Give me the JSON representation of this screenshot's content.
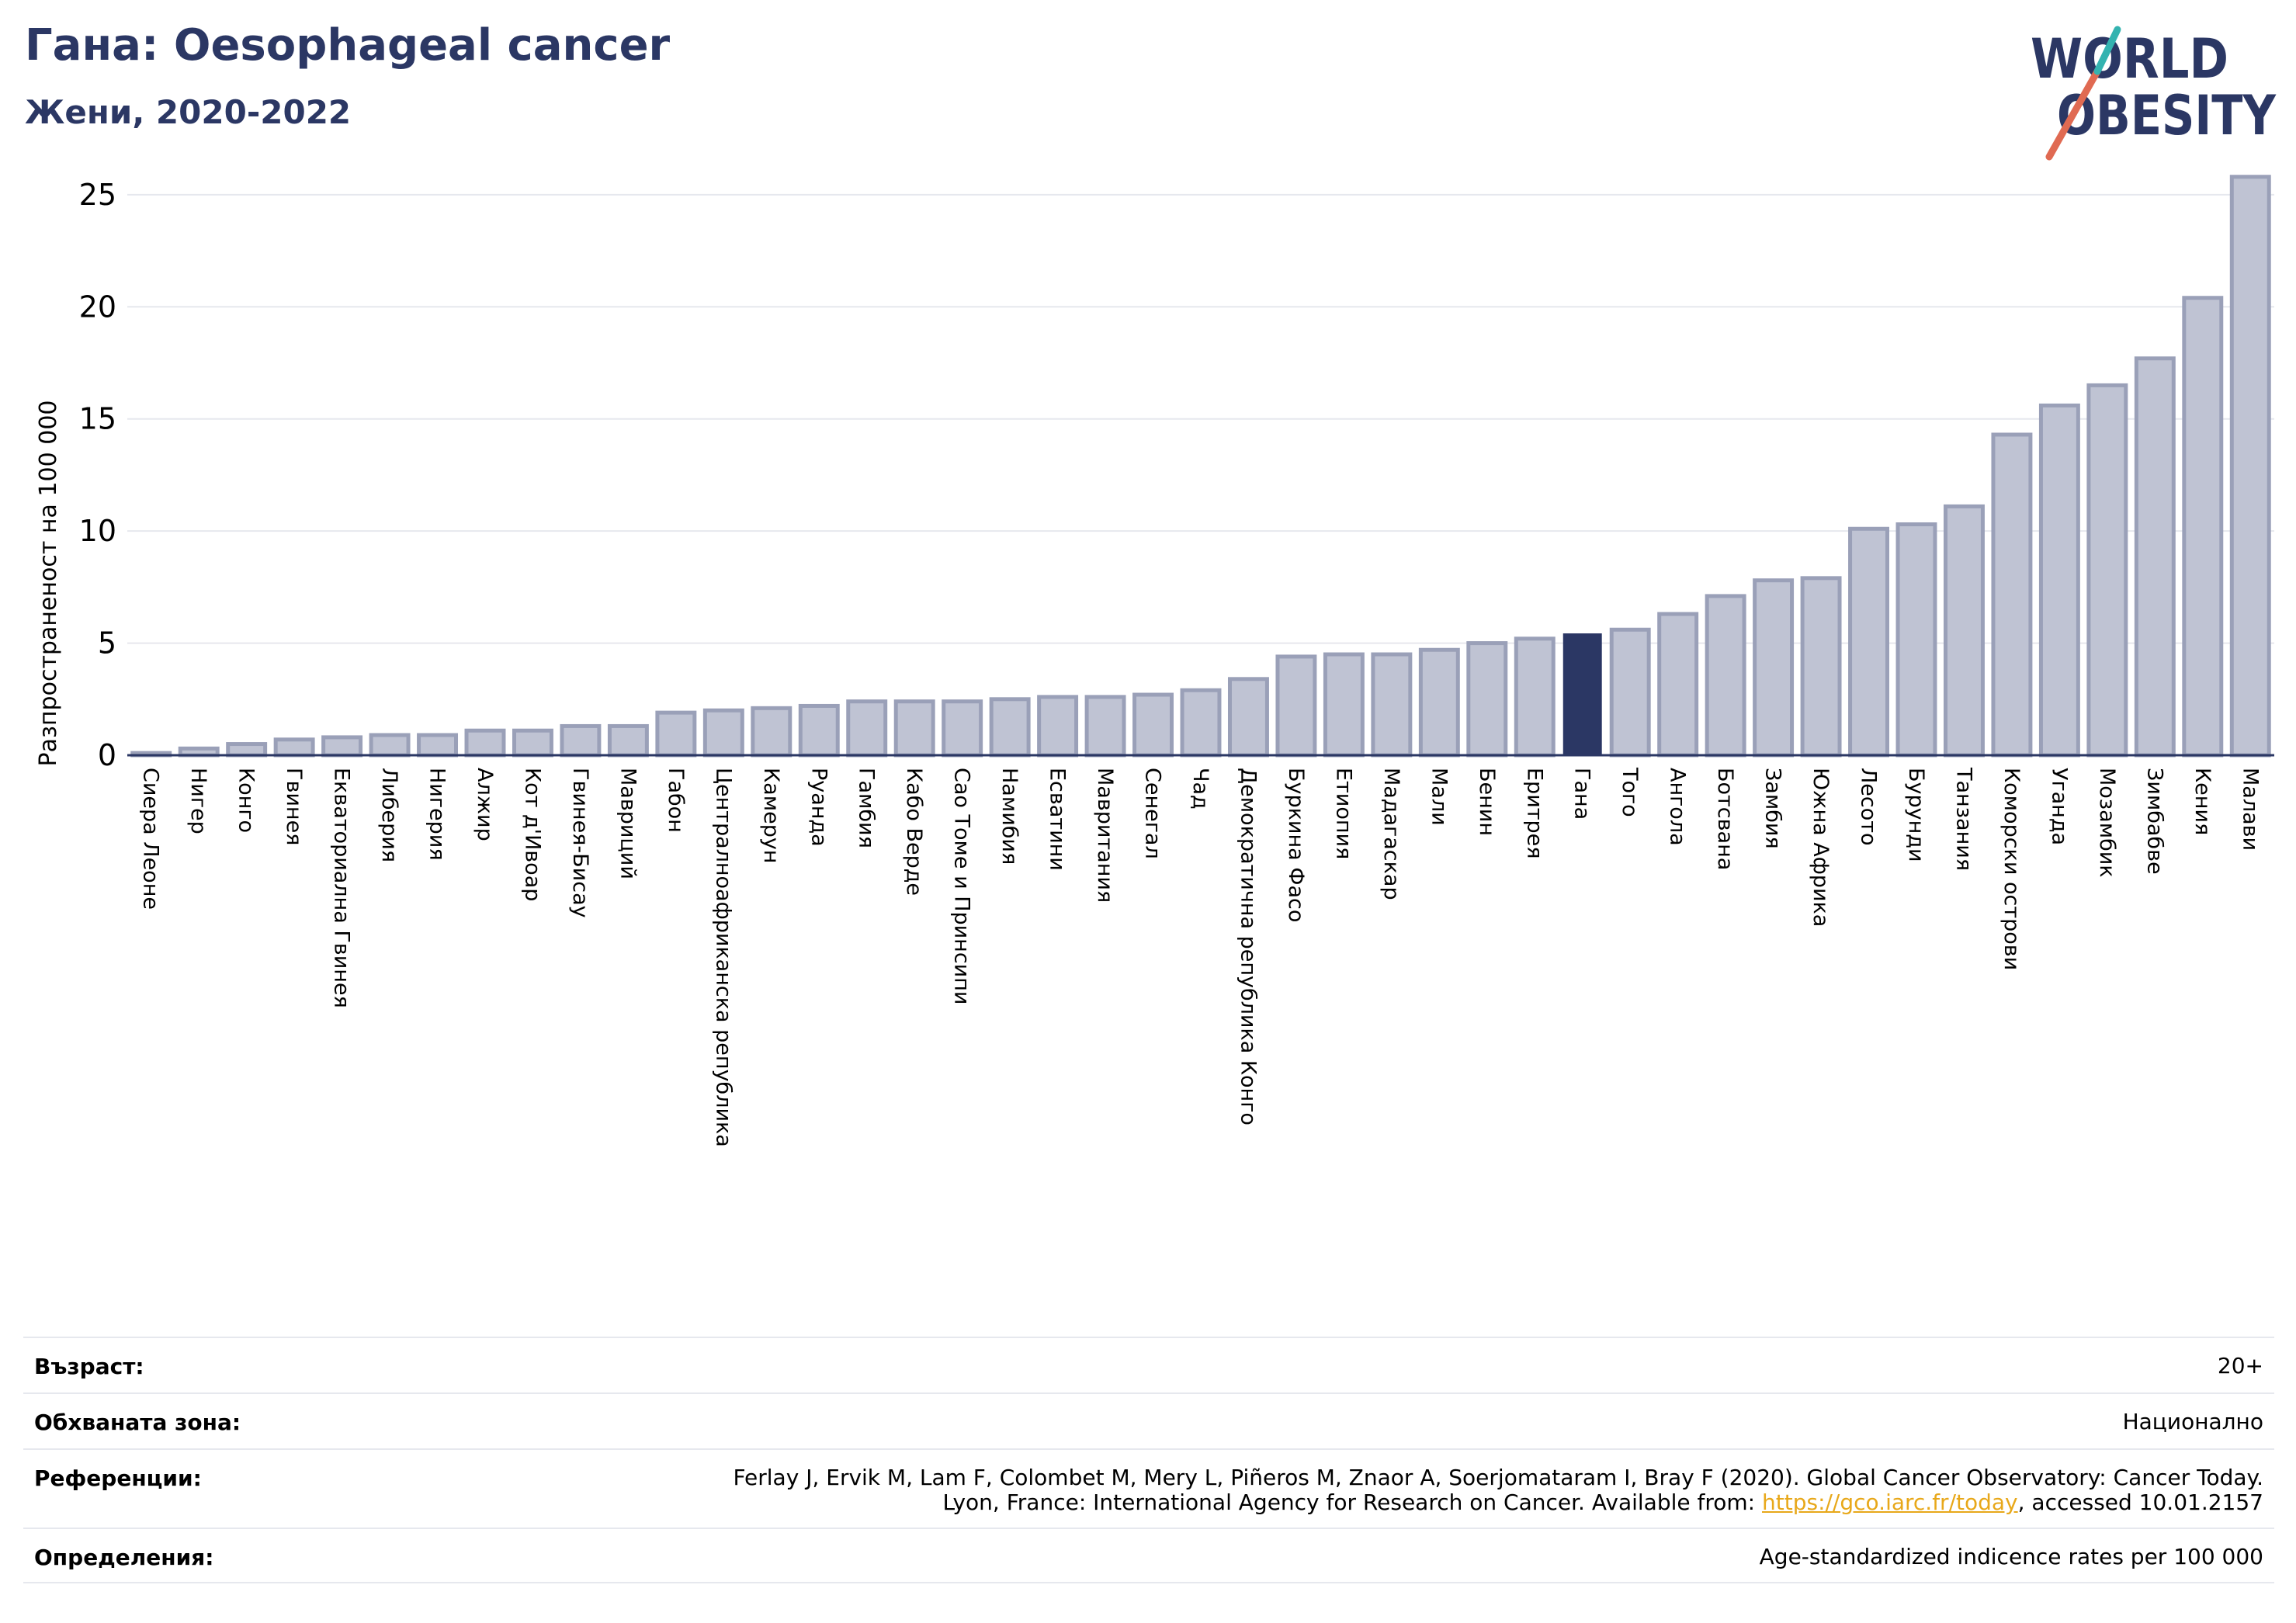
{
  "header": {
    "title": "Гана: Oesophageal cancer",
    "subtitle": "Жени, 2020-2022"
  },
  "logo": {
    "line1": "WORLD",
    "line2": "OBESITY"
  },
  "colors": {
    "bar": "#bfc3d3",
    "bar_edge": "#9aa0b8",
    "highlight": "#2b3764",
    "grid": "#e6e8ee",
    "accent_red": "#e06a52",
    "accent_teal": "#34b3b0"
  },
  "chart_data": {
    "type": "bar",
    "ylabel": "Разпространеност  на 100 000",
    "ylim": [
      0,
      26
    ],
    "yticks": [
      0,
      5,
      10,
      15,
      20,
      25
    ],
    "grid": true,
    "highlight": "Гана",
    "categories": [
      "Сиера Леоне",
      "Нигер",
      "Конго",
      "Гвинея",
      "Екваториална Гвинея",
      "Либерия",
      "Нигерия",
      "Алжир",
      "Кот д'Ивоар",
      "Гвинея-Бисау",
      "Мавриций",
      "Габон",
      "Централноафриканска република",
      "Камерун",
      "Руанда",
      "Гамбия",
      "Кабо Верде",
      "Сао Томе и Принсипи",
      "Намибия",
      "Есватини",
      "Мавритания",
      "Сенегал",
      "Чад",
      "Демократична република Конго",
      "Буркина Фасо",
      "Етиопия",
      "Мадагаскар",
      "Мали",
      "Бенин",
      "Еритрея",
      "Гана",
      "Того",
      "Ангола",
      "Ботсвана",
      "Замбия",
      "Южна Африка",
      "Лесото",
      "Бурунди",
      "Танзания",
      "Коморски острови",
      "Уганда",
      "Мозамбик",
      "Зимбабве",
      "Кения",
      "Малави"
    ],
    "values": [
      0.1,
      0.3,
      0.5,
      0.7,
      0.8,
      0.9,
      0.9,
      1.1,
      1.1,
      1.3,
      1.3,
      1.9,
      2.0,
      2.1,
      2.2,
      2.4,
      2.4,
      2.4,
      2.5,
      2.6,
      2.6,
      2.7,
      2.9,
      3.4,
      4.4,
      4.5,
      4.5,
      4.7,
      5.0,
      5.2,
      5.4,
      5.6,
      6.3,
      7.1,
      7.8,
      7.9,
      10.1,
      10.3,
      11.1,
      14.3,
      15.6,
      16.5,
      17.7,
      20.4,
      25.8
    ]
  },
  "info": {
    "age_label": "Възраст:",
    "age_value": "20+",
    "area_label": "Обхваната зона:",
    "area_value": "Национално",
    "refs_label": "Референции:",
    "refs_line1": "Ferlay J, Ervik M, Lam F, Colombet M, Mery L, Piñeros M, Znaor A, Soerjomataram I, Bray F (2020). Global Cancer Observatory: Cancer Today.",
    "refs_line2_pre": "Lyon, France: International Agency for Research on Cancer. Available from: ",
    "refs_link": "https://gco.iarc.fr/today",
    "refs_line2_post": ", accessed 10.01.2157",
    "def_label": "Определения:",
    "def_value": "Age-standardized indicence rates per 100 000"
  }
}
